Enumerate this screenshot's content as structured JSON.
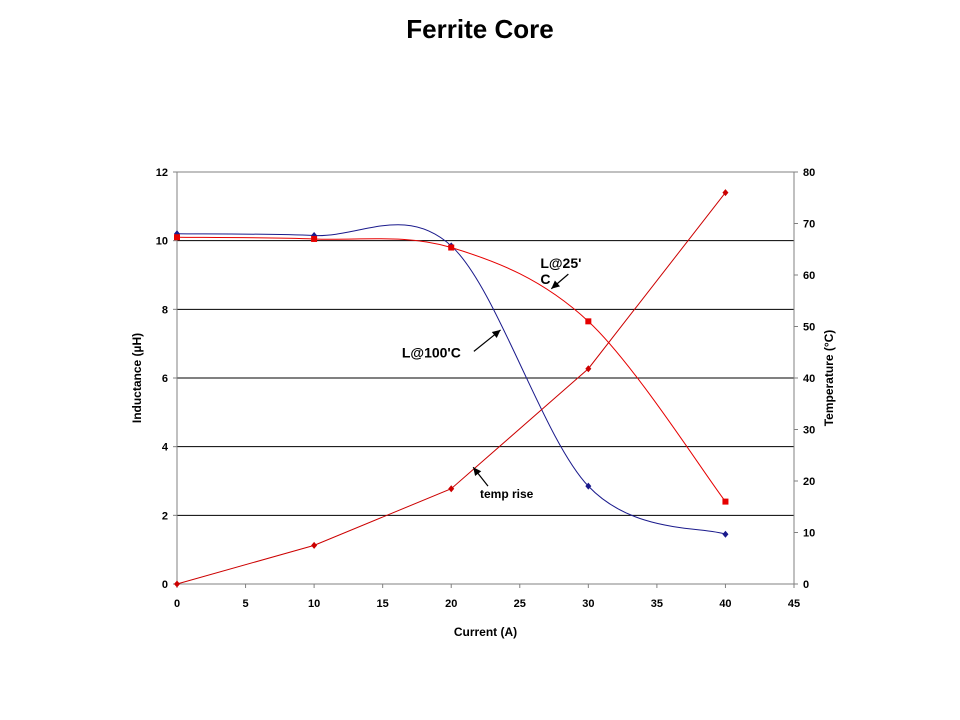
{
  "title": "Ferrite Core",
  "chart_data": {
    "type": "line",
    "title": "Ferrite Core",
    "xlabel": "Current (A)",
    "ylabel": "Inductance (µH)",
    "y2label": "Temperature (°C)",
    "xlim": [
      0,
      45
    ],
    "ylim": [
      0,
      12
    ],
    "y2lim": [
      0,
      80
    ],
    "xticks": [
      "0",
      "5",
      "10",
      "15",
      "20",
      "25",
      "30",
      "35",
      "40",
      "45"
    ],
    "yticks": [
      "0",
      "2",
      "4",
      "6",
      "8",
      "10",
      "12"
    ],
    "y2ticks": [
      "0",
      "10",
      "20",
      "30",
      "40",
      "50",
      "60",
      "70",
      "80"
    ],
    "grid": "horizontal",
    "series": [
      {
        "key": "l100",
        "axis": "left",
        "color": "#1a1a8c",
        "marker": "diamond",
        "smooth": true,
        "x": [
          0,
          10,
          20,
          30,
          40
        ],
        "values": [
          10.2,
          10.15,
          9.85,
          2.85,
          1.45
        ]
      },
      {
        "key": "l25",
        "axis": "left",
        "color": "#e60000",
        "marker": "square",
        "smooth": true,
        "x": [
          0,
          10,
          20,
          30,
          40
        ],
        "values": [
          10.1,
          10.05,
          9.8,
          7.65,
          2.4
        ]
      },
      {
        "key": "temp",
        "axis": "right",
        "color": "#cc0000",
        "marker": "diamond",
        "smooth": false,
        "x": [
          0,
          10,
          20,
          30,
          40
        ],
        "values": [
          0,
          7.5,
          18.5,
          41.8,
          76
        ]
      }
    ],
    "annotations": [
      {
        "key": "l25",
        "lines": [
          "L@25'",
          "C"
        ],
        "size": "big",
        "x": 26.5,
        "y": 9.2,
        "arrow_to": [
          27.3,
          8.6
        ]
      },
      {
        "key": "l100",
        "lines": [
          "L@100'C"
        ],
        "size": "big",
        "x": 16.4,
        "y": 6.6,
        "arrow_to": [
          23.6,
          7.4
        ]
      },
      {
        "key": "temp",
        "lines": [
          "temp rise"
        ],
        "size": "small",
        "x": 22.1,
        "y": 2.5,
        "arrow_to": [
          21.6,
          3.4
        ]
      }
    ]
  }
}
